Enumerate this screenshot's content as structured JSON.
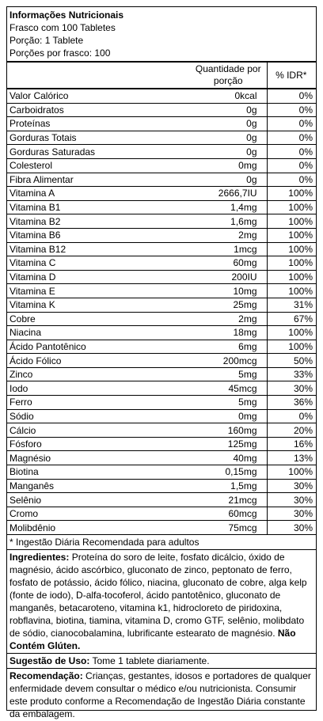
{
  "header": {
    "title": "Informações Nutricionais",
    "lines": [
      "Frasco com 100 Tabletes",
      "Porção: 1 Tablete",
      "Porções por frasco: 100"
    ]
  },
  "table": {
    "columns": [
      "Quantidade por porção",
      "% IDR*"
    ],
    "rows": [
      [
        "Valor Calórico",
        "0kcal",
        "0%"
      ],
      [
        "Carboidratos",
        "0g",
        "0%"
      ],
      [
        "Proteínas",
        "0g",
        "0%"
      ],
      [
        "Gorduras Totais",
        "0g",
        "0%"
      ],
      [
        "Gorduras Saturadas",
        "0g",
        "0%"
      ],
      [
        "Colesterol",
        "0mg",
        "0%"
      ],
      [
        "Fibra Alimentar",
        "0g",
        "0%"
      ],
      [
        "Vitamina A",
        "2666,7IU",
        "100%"
      ],
      [
        "Vitamina B1",
        "1,4mg",
        "100%"
      ],
      [
        "Vitamina B2",
        "1,6mg",
        "100%"
      ],
      [
        "Vitamina B6",
        "2mg",
        "100%"
      ],
      [
        "Vitamina B12",
        "1mcg",
        "100%"
      ],
      [
        "Vitamina C",
        "60mg",
        "100%"
      ],
      [
        "Vitamina D",
        "200IU",
        "100%"
      ],
      [
        "Vitamina E",
        "10mg",
        "100%"
      ],
      [
        "Vitamina K",
        "25mg",
        "31%"
      ],
      [
        "Cobre",
        "2mg",
        "67%"
      ],
      [
        "Niacina",
        "18mg",
        "100%"
      ],
      [
        "Ácido Pantotênico",
        "6mg",
        "100%"
      ],
      [
        "Ácido Fólico",
        "200mcg",
        "50%"
      ],
      [
        "Zinco",
        "5mg",
        "33%"
      ],
      [
        "Iodo",
        "45mcg",
        "30%"
      ],
      [
        "Ferro",
        "5mg",
        "36%"
      ],
      [
        "Sódio",
        "0mg",
        "0%"
      ],
      [
        "Cálcio",
        "160mg",
        "20%"
      ],
      [
        "Fósforo",
        "125mg",
        "16%"
      ],
      [
        "Magnésio",
        "40mg",
        "13%"
      ],
      [
        "Biotina",
        "0,15mg",
        "100%"
      ],
      [
        "Manganês",
        "1,5mg",
        "30%"
      ],
      [
        "Selênio",
        "21mcg",
        "30%"
      ],
      [
        "Cromo",
        "60mcg",
        "30%"
      ],
      [
        "Molibdênio",
        "75mcg",
        "30%"
      ]
    ]
  },
  "footnote": "* Ingestão Diária Recomendada para adultos",
  "ingredients": {
    "label": "Ingredientes:",
    "text": " Proteína do soro de leite, fosfato dicálcio, óxido de magnésio, ácido ascórbico, gluconato de zinco, peptonato de ferro, fosfato de potássio, ácido fólico, niacina, gluconato de cobre, alga kelp (fonte de iodo), D-alfa-tocoferol, ácido pantotênico, gluconato de manganês, betacaroteno, vitamina k1, hidrocloreto de piridoxina, robflavina, biotina, tiamina, vitamina D, cromo GTF, selênio, molibdato de sódio, cianocobalamina, lubrificante estearato de magnésio. ",
    "note": "Não Contém Glúten."
  },
  "usage": {
    "label": "Sugestão de Uso:",
    "text": " Tome 1 tablete diariamente."
  },
  "recommendation": {
    "label": "Recomendação:",
    "text": " Crianças, gestantes, idosos e portadores de qualquer enfermidade devem consultar o médico e/ou nutricionista. Consumir este produto conforme a Recomendação de Ingestão Diária constante da embalagem."
  }
}
